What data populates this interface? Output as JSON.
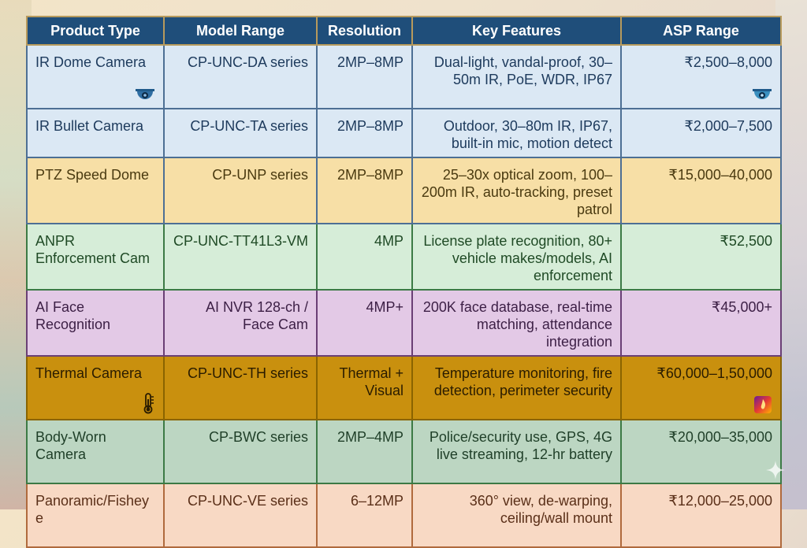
{
  "table": {
    "headers": [
      "Product Type",
      "Model Range",
      "Resolution",
      "Key Features",
      "ASP Range"
    ],
    "rows": [
      {
        "product": "IR Dome Camera",
        "model": "CP-UNC-DA series",
        "resolution": "2MP–8MP",
        "features": "Dual-light, vandal-proof, 30–50m IR, PoE, WDR, IP67",
        "asp": "₹2,500–8,000"
      },
      {
        "product": "IR Bullet Camera",
        "model": "CP-UNC-TA series",
        "resolution": "2MP–8MP",
        "features": "Outdoor, 30–80m IR, IP67, built-in mic, motion detect",
        "asp": "₹2,000–7,500"
      },
      {
        "product": "PTZ Speed Dome",
        "model": "CP-UNP series",
        "resolution": "2MP–8MP",
        "features": "25–30x optical zoom, 100–200m IR, auto-tracking, preset patrol",
        "asp": "₹15,000–40,000"
      },
      {
        "product": "ANPR Enforcement Cam",
        "model": "CP-UNC-TT41L3-VM",
        "resolution": "4MP",
        "features": "License plate recognition, 80+ vehicle makes/models, AI enforcement",
        "asp": "₹52,500"
      },
      {
        "product": "AI Face Recognition",
        "model": "AI NVR 128-ch / Face Cam",
        "resolution": "4MP+",
        "features": "200K face database, real-time matching, attendance integration",
        "asp": "₹45,000+"
      },
      {
        "product": "Thermal Camera",
        "model": "CP-UNC-TH series",
        "resolution": "Thermal + Visual",
        "features": "Temperature monitoring, fire detection, perimeter security",
        "asp": "₹60,000–1,50,000"
      },
      {
        "product": "Body-Worn Camera",
        "model": "CP-BWC series",
        "resolution": "2MP–4MP",
        "features": "Police/security use, GPS, 4G live streaming, 12-hr battery",
        "asp": "₹20,000–35,000"
      },
      {
        "product": "Panoramic/Fisheye",
        "model": "CP-UNC-VE series",
        "resolution": "6–12MP",
        "features": "360° view, de-warping, ceiling/wall mount",
        "asp": "₹12,000–25,000"
      }
    ]
  },
  "icons": {
    "dome": "dome-camera-icon",
    "thermometer": "thermometer-icon",
    "thermal": "thermal-image-icon",
    "sparkle": "sparkle-icon"
  }
}
